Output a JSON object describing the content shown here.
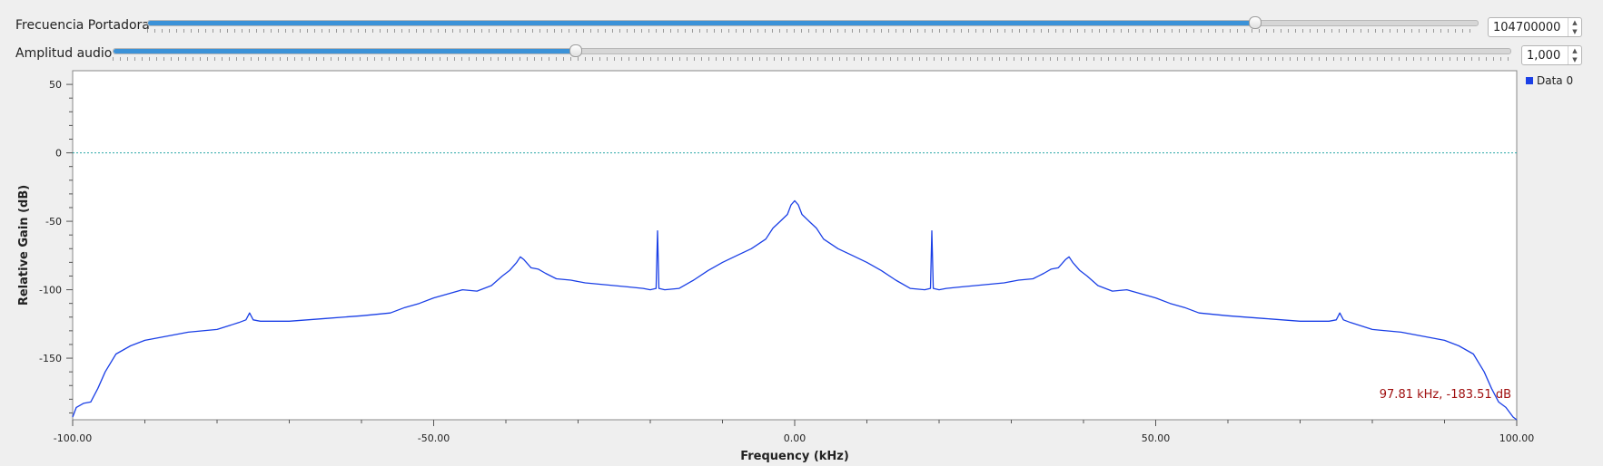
{
  "controls": {
    "frequency": {
      "label": "Frecuencia Portadora",
      "value": "104700000",
      "slider_fraction": 0.832
    },
    "amplitude": {
      "label": "Amplitud audio",
      "value": "1,000",
      "slider_fraction": 0.33
    }
  },
  "colors": {
    "trace": "#1a3fe6",
    "reference_line": "#2aa7a7",
    "marker_text": "#a01010",
    "slider_fill": "#3b92d8"
  },
  "cursor_readout": "97.81 kHz, -183.51 dB",
  "chart_data": {
    "type": "line",
    "xlabel": "Frequency (kHz)",
    "ylabel": "Relative Gain (dB)",
    "xlim": [
      -100,
      100
    ],
    "ylim": [
      -195,
      60
    ],
    "x_ticks": [
      -100,
      -50,
      0,
      50,
      100
    ],
    "x_tick_labels": [
      "-100.00",
      "-50.00",
      "0.00",
      "50.00",
      "100.00"
    ],
    "y_ticks": [
      50,
      0,
      -50,
      -100,
      -150
    ],
    "y_tick_labels": [
      "50",
      "0",
      "-50",
      "-100",
      "-150"
    ],
    "reference_line_y": 0,
    "legend_position": "top-right",
    "series": [
      {
        "name": "Data 0",
        "x": [
          -100,
          -99.5,
          -98.5,
          -97.5,
          -96.5,
          -95.5,
          -94,
          -92,
          -90,
          -87,
          -84,
          -80,
          -77,
          -76,
          -75.5,
          -75,
          -74,
          -70,
          -65,
          -60,
          -56,
          -54,
          -52,
          -50,
          -48,
          -46,
          -44,
          -42,
          -40.5,
          -39.5,
          -38.5,
          -38,
          -37.5,
          -36.5,
          -35.5,
          -34.5,
          -33,
          -31,
          -29,
          -27,
          -25,
          -23,
          -21,
          -20,
          -19.2,
          -19,
          -18.8,
          -18,
          -16,
          -14,
          -12,
          -10,
          -8,
          -6,
          -4,
          -3,
          -2,
          -1,
          -0.5,
          0,
          0.5,
          1,
          2,
          3,
          4,
          6,
          8,
          10,
          12,
          14,
          16,
          18,
          18.8,
          19,
          19.2,
          20,
          21,
          23,
          25,
          27,
          29,
          31,
          33,
          34.5,
          35.5,
          36.5,
          37.5,
          38,
          38.5,
          39.5,
          40.5,
          42,
          44,
          46,
          48,
          50,
          52,
          54,
          56,
          60,
          65,
          70,
          74,
          75,
          75.5,
          76,
          77,
          80,
          84,
          87,
          90,
          92,
          94,
          95.5,
          96.5,
          97.5,
          98.5,
          99.5,
          100
        ],
        "y": [
          -193,
          -186,
          -183,
          -182,
          -172,
          -160,
          -147,
          -141,
          -137,
          -134,
          -131,
          -129,
          -124,
          -122,
          -117,
          -122,
          -123,
          -123,
          -121,
          -119,
          -117,
          -113,
          -110,
          -106,
          -103,
          -100,
          -101,
          -97,
          -90,
          -86,
          -80,
          -76,
          -78,
          -84,
          -85,
          -88,
          -92,
          -93,
          -95,
          -96,
          -97,
          -98,
          -99,
          -100,
          -99,
          -57,
          -99,
          -100,
          -99,
          -93,
          -86,
          -80,
          -75,
          -70,
          -63,
          -55,
          -50,
          -45,
          -38,
          -35,
          -38,
          -45,
          -50,
          -55,
          -63,
          -70,
          -75,
          -80,
          -86,
          -93,
          -99,
          -100,
          -99,
          -57,
          -99,
          -100,
          -99,
          -98,
          -97,
          -96,
          -95,
          -93,
          -92,
          -88,
          -85,
          -84,
          -78,
          -76,
          -80,
          -86,
          -90,
          -97,
          -101,
          -100,
          -103,
          -106,
          -110,
          -113,
          -117,
          -119,
          -121,
          -123,
          -123,
          -122,
          -117,
          -122,
          -124,
          -129,
          -131,
          -134,
          -137,
          -141,
          -147,
          -160,
          -172,
          -182,
          -186,
          -193,
          -195
        ]
      }
    ]
  }
}
